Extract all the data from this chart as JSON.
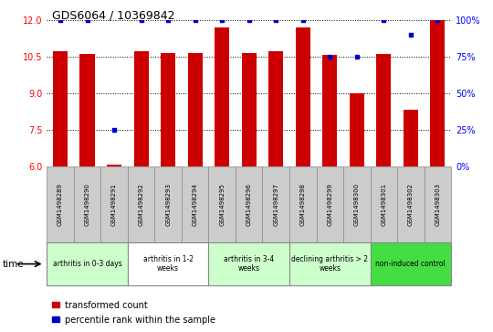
{
  "title": "GDS6064 / 10369842",
  "samples": [
    "GSM1498289",
    "GSM1498290",
    "GSM1498291",
    "GSM1498292",
    "GSM1498293",
    "GSM1498294",
    "GSM1498295",
    "GSM1498296",
    "GSM1498297",
    "GSM1498298",
    "GSM1498299",
    "GSM1498300",
    "GSM1498301",
    "GSM1498302",
    "GSM1498303"
  ],
  "bar_values": [
    10.7,
    10.6,
    6.05,
    10.7,
    10.65,
    10.65,
    11.7,
    10.65,
    10.7,
    11.7,
    10.55,
    9.0,
    10.6,
    8.3,
    12.0
  ],
  "dot_values": [
    100,
    100,
    25,
    100,
    100,
    100,
    100,
    100,
    100,
    100,
    75,
    75,
    100,
    90,
    100
  ],
  "ylim_left": [
    6,
    12
  ],
  "ylim_right": [
    0,
    100
  ],
  "yticks_left": [
    6,
    7.5,
    9,
    10.5,
    12
  ],
  "yticks_right": [
    0,
    25,
    50,
    75,
    100
  ],
  "bar_color": "#cc0000",
  "dot_color": "#0000cc",
  "groups": [
    {
      "label": "arthritis in 0-3 days",
      "start": 0,
      "end": 3,
      "color": "#ccffcc"
    },
    {
      "label": "arthritis in 1-2\nweeks",
      "start": 3,
      "end": 6,
      "color": "#ffffff"
    },
    {
      "label": "arthritis in 3-4\nweeks",
      "start": 6,
      "end": 9,
      "color": "#ccffcc"
    },
    {
      "label": "declining arthritis > 2\nweeks",
      "start": 9,
      "end": 12,
      "color": "#ccffcc"
    },
    {
      "label": "non-induced control",
      "start": 12,
      "end": 15,
      "color": "#44dd44"
    }
  ],
  "legend_bar_label": "transformed count",
  "legend_dot_label": "percentile rank within the sample",
  "time_label": "time",
  "bar_bottom": 6.0,
  "fig_width": 5.4,
  "fig_height": 3.63
}
